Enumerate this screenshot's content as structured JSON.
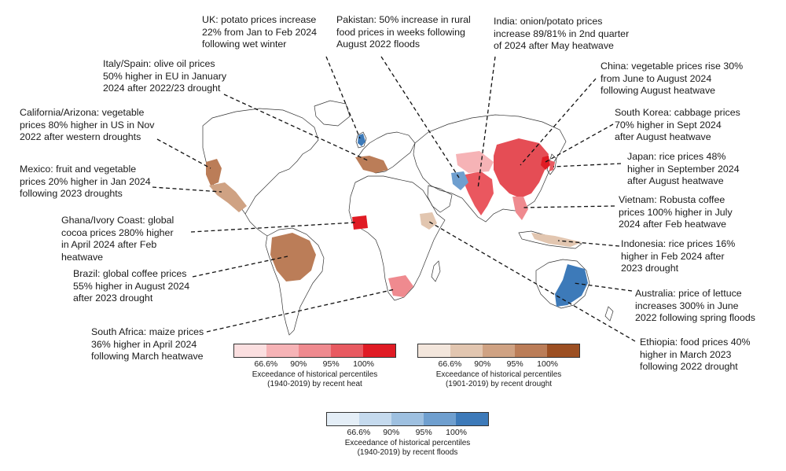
{
  "annotations": [
    {
      "id": "uk",
      "text": "UK: potato prices increase\n22% from Jan to Feb 2024\nfollowing wet winter"
    },
    {
      "id": "pakistan",
      "text": "Pakistan: 50% increase in rural\nfood prices in weeks following\nAugust 2022 floods"
    },
    {
      "id": "india",
      "text": "India: onion/potato prices\nincrease 89/81% in 2nd quarter\nof 2024 after May heatwave"
    },
    {
      "id": "italy_spain",
      "text": "Italy/Spain: olive oil prices\n50% higher in EU in January\n2024 after 2022/23 drought"
    },
    {
      "id": "china",
      "text": "China: vegetable prices rise 30%\nfrom June to August 2024\nfollowing August heatwave"
    },
    {
      "id": "california",
      "text": "California/Arizona: vegetable\nprices 80% higher in US in Nov\n2022 after western droughts"
    },
    {
      "id": "south_korea",
      "text": "South Korea: cabbage prices\n70% higher in Sept 2024\nafter August heatwave"
    },
    {
      "id": "mexico",
      "text": "Mexico: fruit and vegetable\nprices 20% higher in Jan 2024\nfollowing 2023 droughts"
    },
    {
      "id": "japan",
      "text": "Japan: rice prices 48%\nhigher in September 2024\nafter August heatwave"
    },
    {
      "id": "vietnam",
      "text": "Vietnam: Robusta coffee\nprices 100% higher in July\n2024 after Feb heatwave"
    },
    {
      "id": "ghana",
      "text": "Ghana/Ivory Coast: global\ncocoa prices 280% higher\nin April 2024 after Feb\nheatwave"
    },
    {
      "id": "indonesia",
      "text": "Indonesia: rice prices 16%\nhigher in Feb 2024 after\n2023 drought"
    },
    {
      "id": "brazil",
      "text": "Brazil: global coffee prices\n55% higher in August 2024\nafter 2023 drought"
    },
    {
      "id": "australia",
      "text": "Australia: price of lettuce\nincreases 300% in June\n2022 following spring floods"
    },
    {
      "id": "south_africa",
      "text": "South Africa: maize prices\n36% higher in April 2024\nfollowing March heatwave"
    },
    {
      "id": "ethiopia",
      "text": "Ethiopia: food prices 40%\nhigher in March 2023\nfollowing 2022 drought"
    }
  ],
  "legends": {
    "heat": {
      "colors": [
        "#fbdfe0",
        "#f6b3b6",
        "#ef8a8f",
        "#e85a61",
        "#e01b24"
      ],
      "ticks": [
        "66.6%",
        "90%",
        "95%",
        "100%"
      ],
      "caption": "Exceedance of historical percentiles\n(1940-2019) by recent heat"
    },
    "drought": {
      "colors": [
        "#f3e6dc",
        "#e2c6b0",
        "#cfa283",
        "#bb7d58",
        "#9c4f22"
      ],
      "ticks": [
        "66.6%",
        "90%",
        "95%",
        "100%"
      ],
      "caption": "Exceedance of historical percentiles\n(1901-2019) by recent drought"
    },
    "floods": {
      "colors": [
        "#e4eef7",
        "#c5daee",
        "#9ec0e0",
        "#6f9fcf",
        "#3d7ab9"
      ],
      "ticks": [
        "66.6%",
        "90%",
        "95%",
        "100%"
      ],
      "caption": "Exceedance of historical percentiles\n(1940-2019) by recent floods"
    }
  }
}
